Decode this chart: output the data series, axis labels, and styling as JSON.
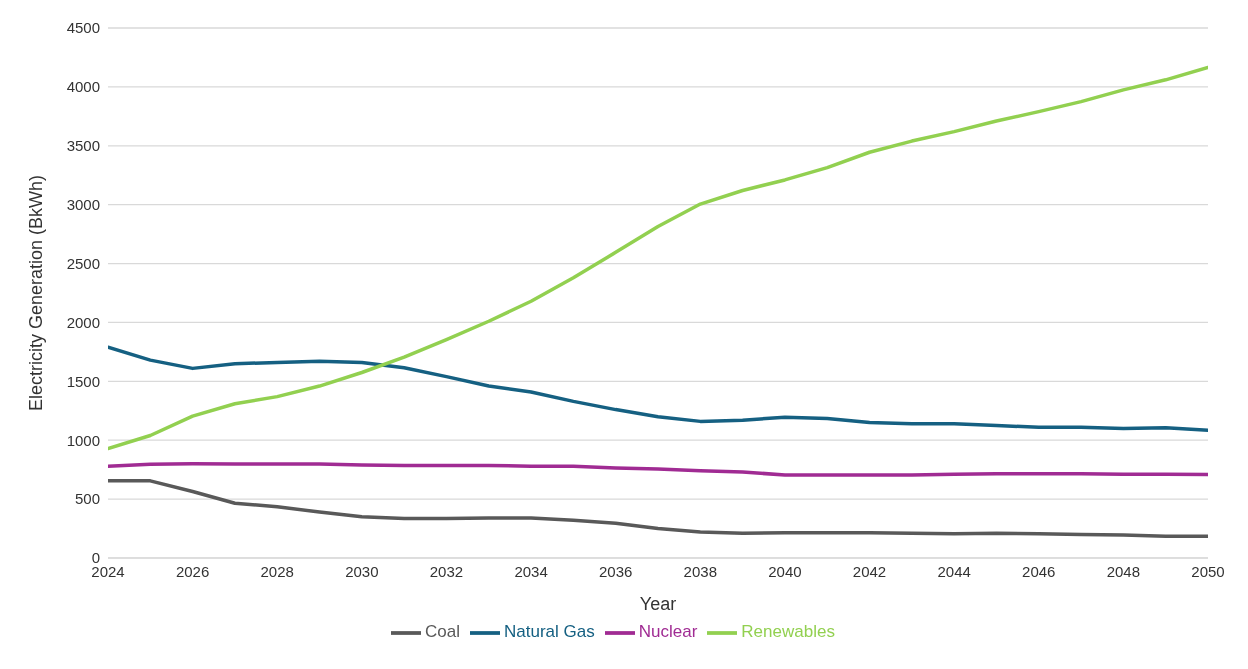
{
  "chart_data": {
    "type": "line",
    "xlabel": "Year",
    "ylabel": "Electricity Generation (BkWh)",
    "x": [
      2024,
      2025,
      2026,
      2027,
      2028,
      2029,
      2030,
      2031,
      2032,
      2033,
      2034,
      2035,
      2036,
      2037,
      2038,
      2039,
      2040,
      2041,
      2042,
      2043,
      2044,
      2045,
      2046,
      2047,
      2048,
      2049,
      2050
    ],
    "series": [
      {
        "name": "Coal",
        "color": "#595959",
        "values": [
          655,
          655,
          565,
          465,
          435,
          390,
          350,
          335,
          335,
          340,
          340,
          320,
          295,
          250,
          220,
          210,
          215,
          215,
          215,
          210,
          205,
          210,
          205,
          200,
          195,
          185,
          185
        ]
      },
      {
        "name": "Natural Gas",
        "color": "#156082",
        "values": [
          1790,
          1680,
          1610,
          1650,
          1660,
          1670,
          1660,
          1615,
          1540,
          1460,
          1410,
          1330,
          1260,
          1200,
          1160,
          1170,
          1195,
          1185,
          1150,
          1140,
          1140,
          1125,
          1110,
          1110,
          1100,
          1105,
          1085
        ]
      },
      {
        "name": "Nuclear",
        "color": "#a02b93",
        "values": [
          780,
          795,
          800,
          798,
          798,
          798,
          790,
          785,
          785,
          785,
          780,
          780,
          765,
          755,
          740,
          730,
          705,
          705,
          705,
          705,
          712,
          715,
          715,
          715,
          712,
          712,
          710
        ]
      },
      {
        "name": "Renewables",
        "color": "#92d050",
        "values": [
          930,
          1040,
          1205,
          1310,
          1370,
          1460,
          1575,
          1705,
          1855,
          2010,
          2180,
          2380,
          2595,
          2815,
          3005,
          3120,
          3210,
          3315,
          3445,
          3540,
          3620,
          3710,
          3790,
          3875,
          3975,
          4060,
          4165
        ]
      }
    ],
    "xlim": [
      2024,
      2050
    ],
    "xticks": [
      2024,
      2026,
      2028,
      2030,
      2032,
      2034,
      2036,
      2038,
      2040,
      2042,
      2044,
      2046,
      2048,
      2050
    ],
    "ylim": [
      0,
      4500
    ],
    "yticks": [
      0,
      500,
      1000,
      1500,
      2000,
      2500,
      3000,
      3500,
      4000,
      4500
    ],
    "grid": "y",
    "legend": "bottom",
    "marker": "none",
    "line_style": "solid"
  }
}
